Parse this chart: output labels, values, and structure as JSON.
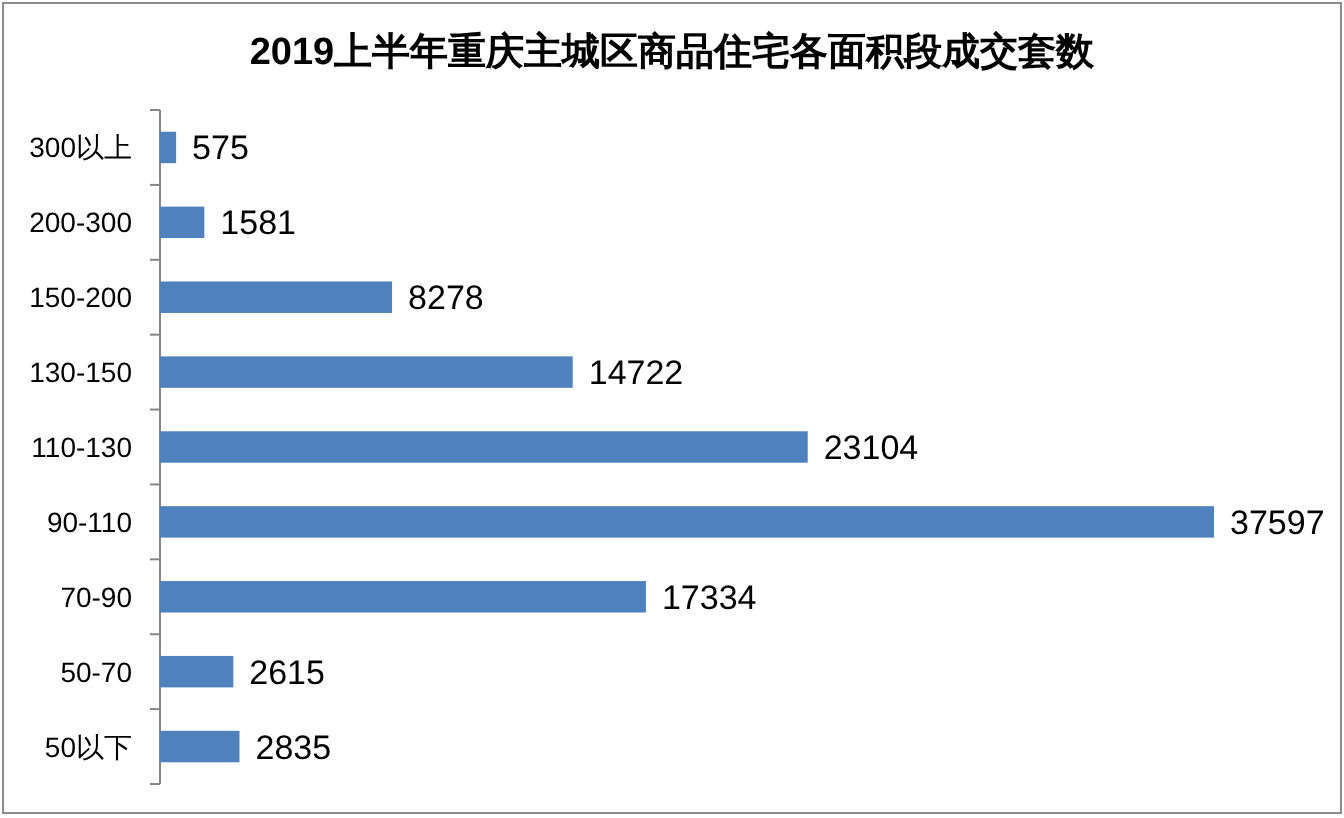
{
  "chart_data": {
    "type": "bar",
    "orientation": "horizontal",
    "title": "2019上半年重庆主城区商品住宅各面积段成交套数",
    "categories": [
      "300以上",
      "200-300",
      "150-200",
      "130-150",
      "110-130",
      "90-110",
      "70-90",
      "50-70",
      "50以下"
    ],
    "values": [
      575,
      1581,
      8278,
      14722,
      23104,
      37597,
      17334,
      2615,
      2835
    ],
    "color": "#4f81bd",
    "data_labels": true
  }
}
